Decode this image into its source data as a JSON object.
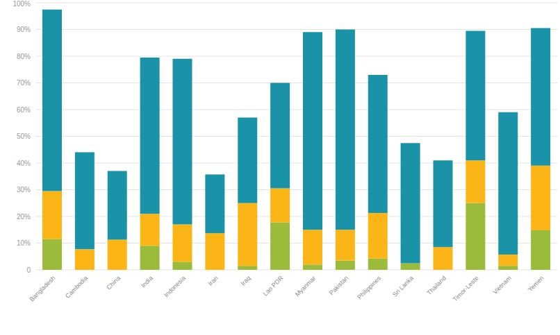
{
  "chart_data": {
    "type": "bar",
    "stacked": true,
    "grid": true,
    "categories": [
      "Bangladesh",
      "Cambodia",
      "China",
      "India",
      "Indonesia",
      "Iran",
      "Iraq",
      "Lao PDR",
      "Myanmar",
      "Pakistan",
      "Philippines",
      "Sri Lanka",
      "Thailand",
      "Timor-Leste",
      "Vietnam",
      "Yemen"
    ],
    "series": [
      {
        "color": "#9bbb3b",
        "values": [
          11.5,
          0,
          0,
          9,
          3,
          0,
          1.5,
          17.8,
          2,
          3.5,
          4.2,
          2.5,
          0,
          25,
          1.5,
          14.8
        ]
      },
      {
        "color": "#fbb516",
        "values": [
          18,
          7.7,
          11.3,
          12,
          14,
          13.7,
          23.5,
          12.7,
          13,
          11.5,
          17.1,
          0,
          8.5,
          16,
          4.2,
          24.2
        ]
      },
      {
        "color": "#1a93a8",
        "values": [
          68,
          36.3,
          25.7,
          58.5,
          62,
          22,
          32,
          39.5,
          74,
          75,
          51.7,
          45,
          32.5,
          48.5,
          53.3,
          51.5
        ]
      }
    ],
    "ylim": [
      0,
      100
    ],
    "yticks": [
      0,
      {
        "value": 10,
        "label": "10%"
      },
      {
        "value": 20,
        "label": "20%"
      },
      {
        "value": 30,
        "label": "30%"
      },
      {
        "value": 40,
        "label": "40%"
      },
      {
        "value": 50,
        "label": "50%"
      },
      {
        "value": 60,
        "label": "60%"
      },
      {
        "value": 70,
        "label": "70%"
      },
      {
        "value": 80,
        "label": "80%"
      },
      {
        "value": 90,
        "label": "90%"
      },
      {
        "value": 100,
        "label": "100%"
      }
    ]
  }
}
